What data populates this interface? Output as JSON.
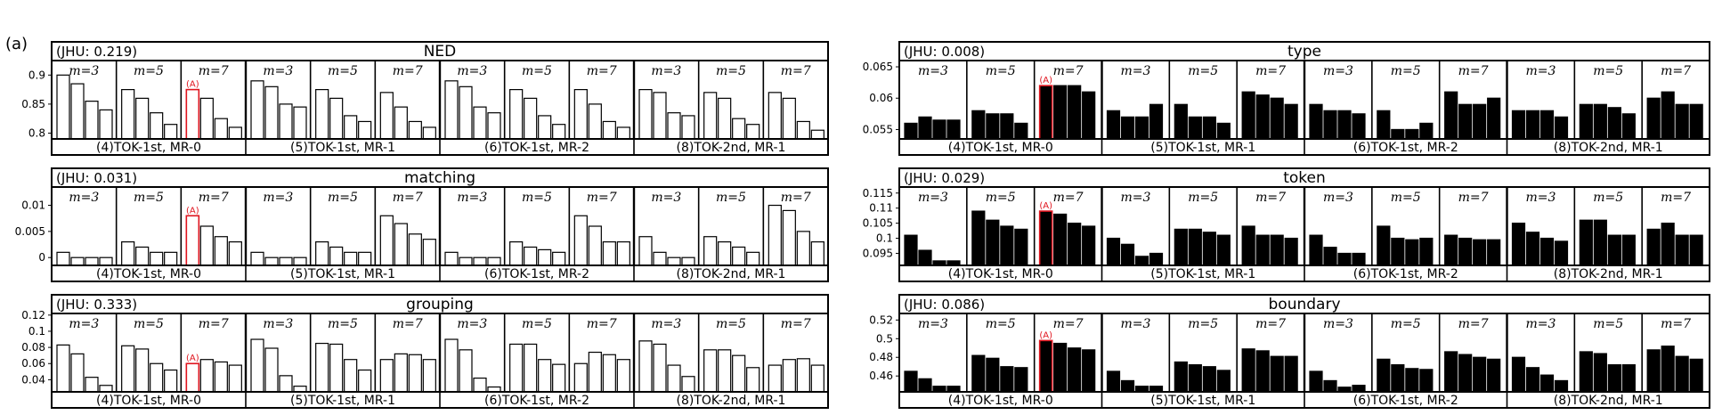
{
  "panel_label": "(a)",
  "colors": {
    "ink": "#000000",
    "highlight": "#e0141e",
    "paper": "#ffffff"
  },
  "group_labels": [
    "(4)TOK-1st, MR-0",
    "(5)TOK-1st, MR-1",
    "(6)TOK-1st, MR-2",
    "(8)TOK-2nd, MR-1"
  ],
  "m_labels": [
    "m=3",
    "m=5",
    "m=7"
  ],
  "highlight_label": "(A)",
  "chart_data": [
    {
      "type": "bar",
      "title": "NED",
      "jhu": "(JHU: 0.219)",
      "fill": "hollow",
      "ylim": [
        0.79,
        0.925
      ],
      "ytick_values": [
        0.8,
        0.85,
        0.9
      ],
      "ytick_labels": [
        "0.8",
        "0.85",
        "0.9"
      ],
      "groups": [
        [
          [
            0.9,
            0.885,
            0.855,
            0.84
          ],
          [
            0.875,
            0.86,
            0.835,
            0.815
          ],
          [
            0.875,
            0.86,
            0.825,
            0.81
          ]
        ],
        [
          [
            0.89,
            0.88,
            0.85,
            0.845
          ],
          [
            0.875,
            0.86,
            0.83,
            0.82
          ],
          [
            0.87,
            0.845,
            0.82,
            0.81
          ]
        ],
        [
          [
            0.89,
            0.88,
            0.845,
            0.835
          ],
          [
            0.875,
            0.86,
            0.83,
            0.815
          ],
          [
            0.875,
            0.85,
            0.82,
            0.81
          ]
        ],
        [
          [
            0.875,
            0.87,
            0.835,
            0.83
          ],
          [
            0.87,
            0.86,
            0.825,
            0.815
          ],
          [
            0.87,
            0.86,
            0.82,
            0.805
          ]
        ]
      ]
    },
    {
      "type": "bar",
      "title": "type",
      "jhu": "(JHU: 0.008)",
      "fill": "solid",
      "ylim": [
        0.0535,
        0.066
      ],
      "ytick_values": [
        0.055,
        0.06,
        0.065
      ],
      "ytick_labels": [
        "0.055",
        "0.06",
        "0.065"
      ],
      "groups": [
        [
          [
            0.056,
            0.057,
            0.0565,
            0.0565
          ],
          [
            0.058,
            0.0575,
            0.0575,
            0.056
          ],
          [
            0.062,
            0.062,
            0.062,
            0.061
          ]
        ],
        [
          [
            0.058,
            0.057,
            0.057,
            0.059
          ],
          [
            0.059,
            0.057,
            0.057,
            0.056
          ],
          [
            0.061,
            0.0605,
            0.06,
            0.059
          ]
        ],
        [
          [
            0.059,
            0.058,
            0.058,
            0.0575
          ],
          [
            0.058,
            0.055,
            0.055,
            0.056
          ],
          [
            0.061,
            0.059,
            0.059,
            0.06
          ]
        ],
        [
          [
            0.058,
            0.058,
            0.058,
            0.057
          ],
          [
            0.059,
            0.059,
            0.0585,
            0.0575
          ],
          [
            0.06,
            0.061,
            0.059,
            0.059
          ]
        ]
      ]
    },
    {
      "type": "bar",
      "title": "matching",
      "jhu": "(JHU: 0.031)",
      "fill": "hollow",
      "ylim": [
        -0.0015,
        0.0135
      ],
      "ytick_values": [
        0,
        0.005,
        0.01
      ],
      "ytick_labels": [
        "0",
        "0.005",
        "0.01"
      ],
      "groups": [
        [
          [
            0.001,
            0,
            0,
            0
          ],
          [
            0.003,
            0.002,
            0.001,
            0.001
          ],
          [
            0.008,
            0.006,
            0.004,
            0.003
          ]
        ],
        [
          [
            0.001,
            0,
            0,
            0
          ],
          [
            0.003,
            0.002,
            0.001,
            0.001
          ],
          [
            0.008,
            0.0065,
            0.0045,
            0.0035
          ]
        ],
        [
          [
            0.001,
            0,
            0,
            0
          ],
          [
            0.003,
            0.002,
            0.0015,
            0.001
          ],
          [
            0.008,
            0.006,
            0.003,
            0.003
          ]
        ],
        [
          [
            0.004,
            0.001,
            0,
            0
          ],
          [
            0.004,
            0.003,
            0.002,
            0.001
          ],
          [
            0.01,
            0.009,
            0.005,
            0.003
          ]
        ]
      ]
    },
    {
      "type": "bar",
      "title": "token",
      "jhu": "(JHU: 0.029)",
      "fill": "solid",
      "ylim": [
        0.091,
        0.117
      ],
      "ytick_values": [
        0.095,
        0.1,
        0.105,
        0.11,
        0.115
      ],
      "ytick_labels": [
        "0.095",
        "0.1",
        "0.105",
        "0.11",
        "0.115"
      ],
      "groups": [
        [
          [
            0.101,
            0.096,
            0.0925,
            0.0925
          ],
          [
            0.109,
            0.106,
            0.104,
            0.103
          ],
          [
            0.109,
            0.108,
            0.105,
            0.104
          ]
        ],
        [
          [
            0.1,
            0.098,
            0.094,
            0.095
          ],
          [
            0.103,
            0.103,
            0.102,
            0.101
          ],
          [
            0.104,
            0.101,
            0.101,
            0.1
          ]
        ],
        [
          [
            0.101,
            0.097,
            0.095,
            0.095
          ],
          [
            0.104,
            0.1,
            0.0995,
            0.1
          ],
          [
            0.101,
            0.1,
            0.0995,
            0.0995
          ]
        ],
        [
          [
            0.105,
            0.102,
            0.1,
            0.099
          ],
          [
            0.106,
            0.106,
            0.101,
            0.101
          ],
          [
            0.103,
            0.105,
            0.101,
            0.101
          ]
        ]
      ]
    },
    {
      "type": "bar",
      "title": "grouping",
      "jhu": "(JHU: 0.333)",
      "fill": "hollow",
      "ylim": [
        0.025,
        0.122
      ],
      "ytick_values": [
        0.04,
        0.06,
        0.08,
        0.1,
        0.12
      ],
      "ytick_labels": [
        "0.04",
        "0.06",
        "0.08",
        "0.1",
        "0.12"
      ],
      "groups": [
        [
          [
            0.083,
            0.072,
            0.043,
            0.033
          ],
          [
            0.082,
            0.078,
            0.06,
            0.052
          ],
          [
            0.06,
            0.065,
            0.062,
            0.058
          ]
        ],
        [
          [
            0.09,
            0.079,
            0.045,
            0.032
          ],
          [
            0.085,
            0.084,
            0.065,
            0.052
          ],
          [
            0.065,
            0.072,
            0.071,
            0.065
          ]
        ],
        [
          [
            0.09,
            0.077,
            0.042,
            0.031
          ],
          [
            0.084,
            0.084,
            0.065,
            0.059
          ],
          [
            0.06,
            0.074,
            0.071,
            0.065
          ]
        ],
        [
          [
            0.088,
            0.084,
            0.058,
            0.044
          ],
          [
            0.077,
            0.077,
            0.07,
            0.055
          ],
          [
            0.058,
            0.065,
            0.066,
            0.058
          ]
        ]
      ]
    },
    {
      "type": "bar",
      "title": "boundary",
      "jhu": "(JHU: 0.086)",
      "fill": "solid",
      "ylim": [
        0.443,
        0.527
      ],
      "ytick_values": [
        0.46,
        0.48,
        0.5,
        0.52
      ],
      "ytick_labels": [
        "0.46",
        "0.48",
        "0.5",
        "0.52"
      ],
      "groups": [
        [
          [
            0.465,
            0.457,
            0.449,
            0.449
          ],
          [
            0.482,
            0.479,
            0.47,
            0.469
          ],
          [
            0.498,
            0.495,
            0.49,
            0.488
          ]
        ],
        [
          [
            0.465,
            0.455,
            0.449,
            0.449
          ],
          [
            0.475,
            0.472,
            0.47,
            0.466
          ],
          [
            0.489,
            0.487,
            0.481,
            0.481
          ]
        ],
        [
          [
            0.465,
            0.455,
            0.448,
            0.45
          ],
          [
            0.478,
            0.472,
            0.468,
            0.467
          ],
          [
            0.486,
            0.483,
            0.48,
            0.478
          ]
        ],
        [
          [
            0.48,
            0.469,
            0.461,
            0.455
          ],
          [
            0.486,
            0.484,
            0.472,
            0.472
          ],
          [
            0.488,
            0.492,
            0.481,
            0.478
          ]
        ]
      ]
    }
  ]
}
